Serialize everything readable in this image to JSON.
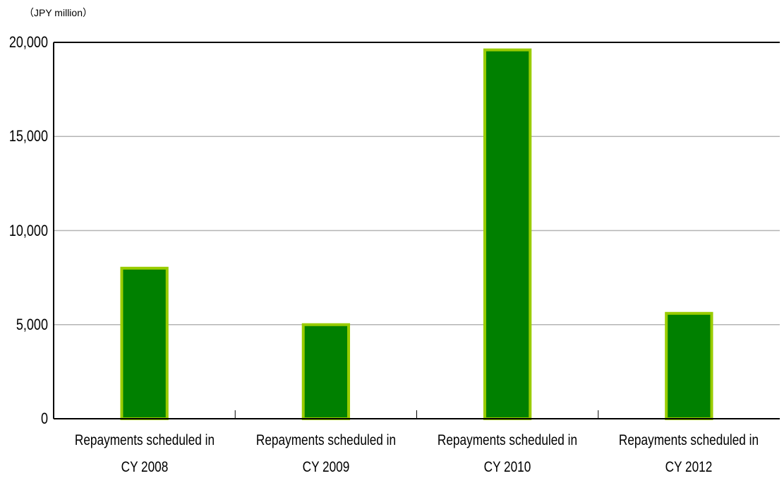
{
  "chart_data": {
    "type": "bar",
    "y_axis_label": "（JPY million）",
    "categories": [
      "Repayments scheduled in\nCY 2008",
      "Repayments scheduled in\nCY 2009",
      "Repayments scheduled in\nCY 2010",
      "Repayments scheduled in\nCY 2012"
    ],
    "values": [
      8000,
      5000,
      19600,
      5600
    ],
    "color": "#008000",
    "edge_color": "#99cc00",
    "ylim": [
      0,
      20000
    ],
    "yticks": [
      0,
      {
        "value": 5000,
        "label": "5,000"
      },
      {
        "value": 10000,
        "label": "10,000"
      },
      {
        "value": 15000,
        "label": "15,000"
      },
      {
        "value": 20000,
        "label": "20,000"
      }
    ],
    "grid": true
  }
}
